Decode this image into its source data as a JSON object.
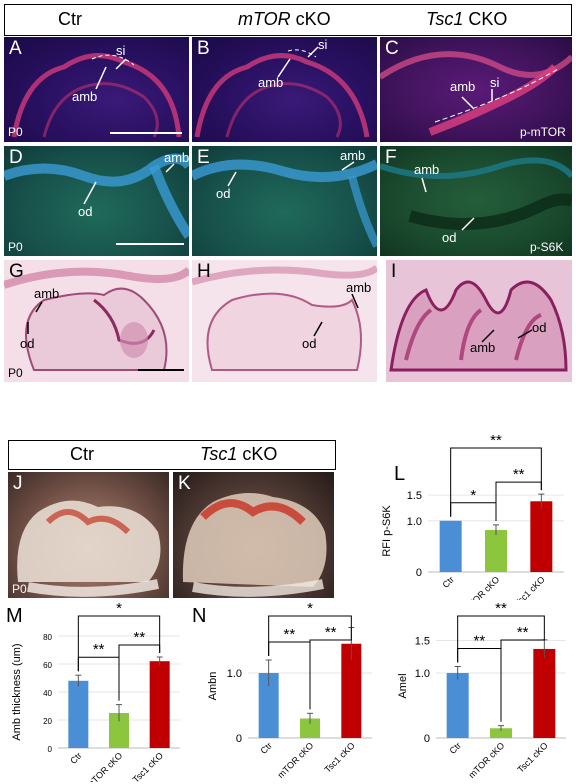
{
  "header_top": {
    "ctr": "Ctr",
    "mtor_gene": "mTOR",
    "mtor_suffix": " cKO",
    "tsc1_gene": "Tsc1",
    "tsc1_suffix": " CKO"
  },
  "header_bottom": {
    "ctr": "Ctr",
    "tsc1_gene": "Tsc1",
    "tsc1_suffix": " cKO"
  },
  "panels": {
    "A": {
      "label": "A",
      "annos": [
        "amb",
        "si"
      ],
      "corner": "P0"
    },
    "B": {
      "label": "B",
      "annos": [
        "amb",
        "si"
      ]
    },
    "C": {
      "label": "C",
      "annos": [
        "amb",
        "si"
      ],
      "corner": "p-mTOR"
    },
    "D": {
      "label": "D",
      "annos": [
        "od",
        "amb"
      ],
      "corner": "P0"
    },
    "E": {
      "label": "E",
      "annos": [
        "od",
        "amb"
      ]
    },
    "F": {
      "label": "F",
      "annos": [
        "amb",
        "od"
      ],
      "corner": "p-S6K"
    },
    "G": {
      "label": "G",
      "annos": [
        "amb",
        "od"
      ],
      "corner": "P0"
    },
    "H": {
      "label": "H",
      "annos": [
        "amb",
        "od"
      ]
    },
    "I": {
      "label": "I",
      "annos": [
        "od",
        "amb"
      ]
    },
    "J": {
      "label": "J",
      "corner": "P0"
    },
    "K": {
      "label": "K"
    }
  },
  "colors": {
    "ctr": "#4a8fd6",
    "mtor": "#8cc63f",
    "tsc1": "#c00000"
  },
  "chart_data": [
    {
      "panel": "L",
      "type": "bar",
      "categories": [
        "Ctr",
        "mTOR cKO",
        "Tsc1 cKO"
      ],
      "values": [
        1.0,
        0.82,
        1.38
      ],
      "errors": [
        0.0,
        0.1,
        0.14
      ],
      "ylabel": "RFI p-S6K",
      "ylim": [
        0,
        1.6
      ],
      "yticks": [
        "0",
        "1.0",
        "1.5"
      ],
      "significance": [
        "*",
        "**",
        "**"
      ]
    },
    {
      "panel": "M",
      "type": "bar",
      "categories": [
        "Ctr",
        "mTOR cKO",
        "Tsc1 cKO"
      ],
      "values": [
        48,
        25,
        62
      ],
      "errors": [
        4,
        6,
        3
      ],
      "ylabel": "Amb thickness (um)",
      "ylim": [
        0,
        80
      ],
      "yticks": [
        "0",
        "20",
        "40",
        "60",
        "80"
      ],
      "significance": [
        "**",
        "**",
        "*"
      ]
    },
    {
      "panel": "N",
      "type": "bar",
      "categories": [
        "Ctr",
        "mTOR cKO",
        "Tsc1 cKO"
      ],
      "values": [
        1.0,
        0.3,
        1.45
      ],
      "errors": [
        0.2,
        0.08,
        0.25
      ],
      "ylabel": "Ambn",
      "ylim": [
        0,
        1.6
      ],
      "yticks": [
        "0",
        "1.0"
      ],
      "significance": [
        "**",
        "**",
        "*"
      ]
    },
    {
      "panel": "",
      "type": "bar",
      "categories": [
        "Ctr",
        "mTOR cKO",
        "Tsc1 cKO"
      ],
      "values": [
        1.0,
        0.15,
        1.37
      ],
      "errors": [
        0.1,
        0.04,
        0.14
      ],
      "ylabel": "Amel",
      "ylim": [
        0,
        1.6
      ],
      "yticks": [
        "0",
        "1.0",
        "1.5"
      ],
      "significance": [
        "**",
        "**",
        "**"
      ]
    }
  ]
}
